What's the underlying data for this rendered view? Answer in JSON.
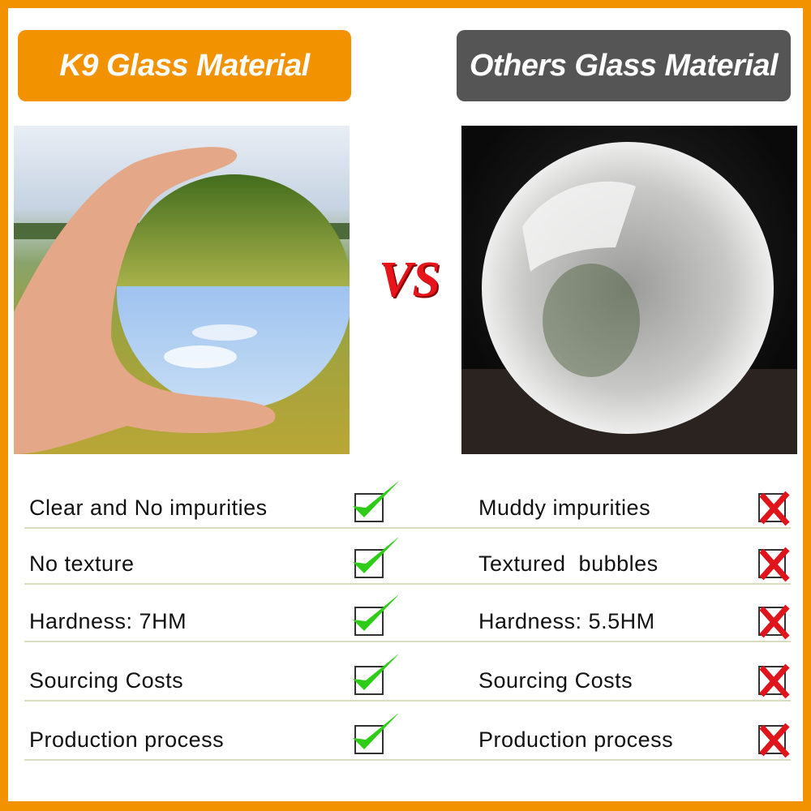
{
  "header": {
    "left_title": "K9 Glass Material",
    "right_title": "Others Glass Material",
    "vs": "VS"
  },
  "colors": {
    "frame": "#f39200",
    "left_pill": "#f39200",
    "right_pill": "#555555",
    "check": "#2ecc17",
    "cross": "#e0141b",
    "vs": "#e8141b"
  },
  "images": {
    "left": "hand holding clear crystal ball in field",
    "right": "cloudy crystal ball on dark background"
  },
  "rows": [
    {
      "left": "Clear and No impurities",
      "right": "Muddy impurities"
    },
    {
      "left": "No texture",
      "right": "Textured  bubbles"
    },
    {
      "left": "Hardness: 7HM",
      "right": "Hardness: 5.5HM"
    },
    {
      "left": "Sourcing Costs",
      "right": "Sourcing Costs"
    },
    {
      "left": "Production process",
      "right": "Production process"
    }
  ],
  "icons": {
    "left_mark": "check-icon",
    "right_mark": "cross-icon"
  }
}
